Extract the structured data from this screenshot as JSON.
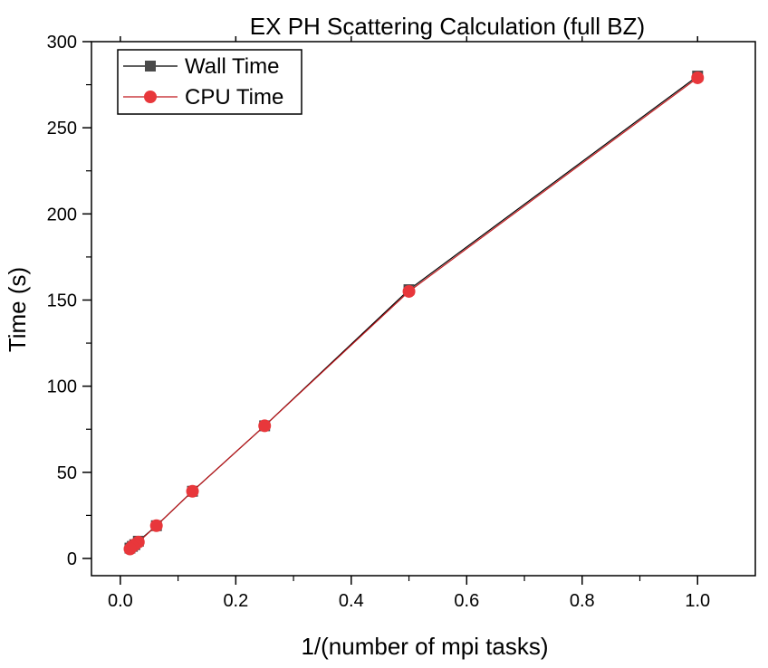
{
  "chart_data": {
    "type": "line",
    "title": "EX PH Scattering Calculation (full BZ)",
    "xlabel": "1/(number of mpi tasks)",
    "ylabel": "Time (s)",
    "xlim": [
      -0.05,
      1.1
    ],
    "ylim": [
      -10,
      300
    ],
    "xticks": [
      0.0,
      0.2,
      0.4,
      0.6,
      0.8,
      1.0
    ],
    "xtick_labels": [
      "0.0",
      "0.2",
      "0.4",
      "0.6",
      "0.8",
      "1.0"
    ],
    "yticks": [
      0,
      50,
      100,
      150,
      200,
      250,
      300
    ],
    "ytick_labels": [
      "0",
      "50",
      "100",
      "150",
      "200",
      "250",
      "300"
    ],
    "grid": false,
    "legend_position": "top-left",
    "series": [
      {
        "name": "Wall Time",
        "marker": "square",
        "color": "#4a4a4a",
        "line_color": "#000000",
        "x": [
          1.0,
          0.5,
          0.25,
          0.125,
          0.0625,
          0.03125,
          0.025,
          0.02083,
          0.01667
        ],
        "y": [
          280,
          156,
          77,
          39,
          19,
          10,
          8,
          7,
          6
        ]
      },
      {
        "name": "CPU Time",
        "marker": "circle",
        "color": "#e8373b",
        "line_color": "#c0181c",
        "x": [
          1.0,
          0.5,
          0.25,
          0.125,
          0.0625,
          0.03125,
          0.025,
          0.02083,
          0.01667
        ],
        "y": [
          279,
          155,
          77,
          39,
          19,
          9.5,
          8,
          7,
          5.5
        ]
      }
    ]
  }
}
